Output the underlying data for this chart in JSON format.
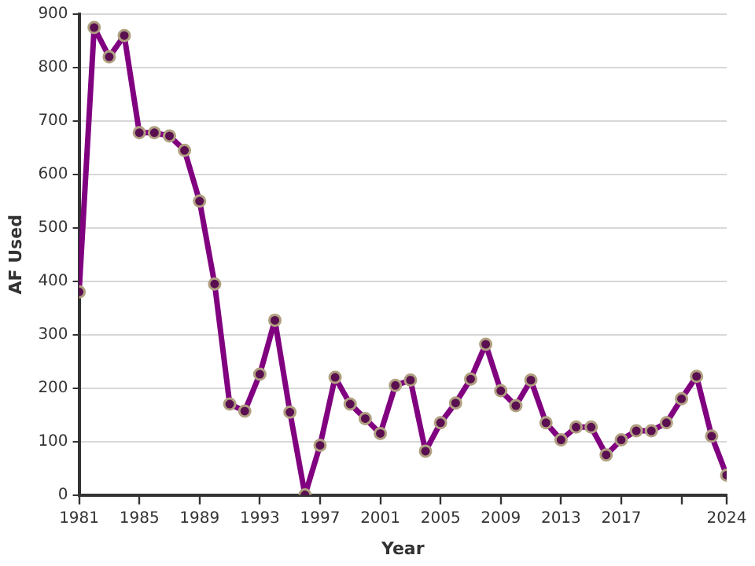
{
  "chart_data": {
    "type": "line",
    "xlabel": "Year",
    "ylabel": "AF Used",
    "x": [
      1981,
      1982,
      1983,
      1984,
      1985,
      1986,
      1987,
      1988,
      1989,
      1990,
      1991,
      1992,
      1993,
      1994,
      1995,
      1996,
      1997,
      1998,
      1999,
      2000,
      2001,
      2002,
      2003,
      2004,
      2005,
      2006,
      2007,
      2008,
      2009,
      2010,
      2011,
      2012,
      2013,
      2014,
      2015,
      2016,
      2017,
      2018,
      2019,
      2020,
      2021,
      2022,
      2023,
      2024
    ],
    "series": [
      {
        "color": "#800080",
        "values": [
          380,
          875,
          820,
          860,
          678,
          678,
          672,
          645,
          550,
          395,
          170,
          157,
          226,
          327,
          155,
          0,
          93,
          220,
          170,
          143,
          115,
          205,
          215,
          82,
          135,
          172,
          217,
          282,
          195,
          167,
          215,
          135,
          103,
          127,
          127,
          75,
          103,
          120,
          120,
          135,
          180,
          222,
          110,
          37
        ]
      }
    ],
    "xlim": [
      1981,
      2024
    ],
    "xticks": [
      1981,
      1985,
      1989,
      1993,
      1997,
      2001,
      2005,
      2009,
      2013,
      2017,
      {
        "value": 2021,
        "label": null
      },
      2024
    ],
    "ylim": [
      0,
      900
    ],
    "yticks": [
      0,
      100,
      200,
      300,
      400,
      500,
      600,
      700,
      800,
      900
    ],
    "grid": "y",
    "legend": false,
    "marker": "circle",
    "line_style": "solid"
  }
}
